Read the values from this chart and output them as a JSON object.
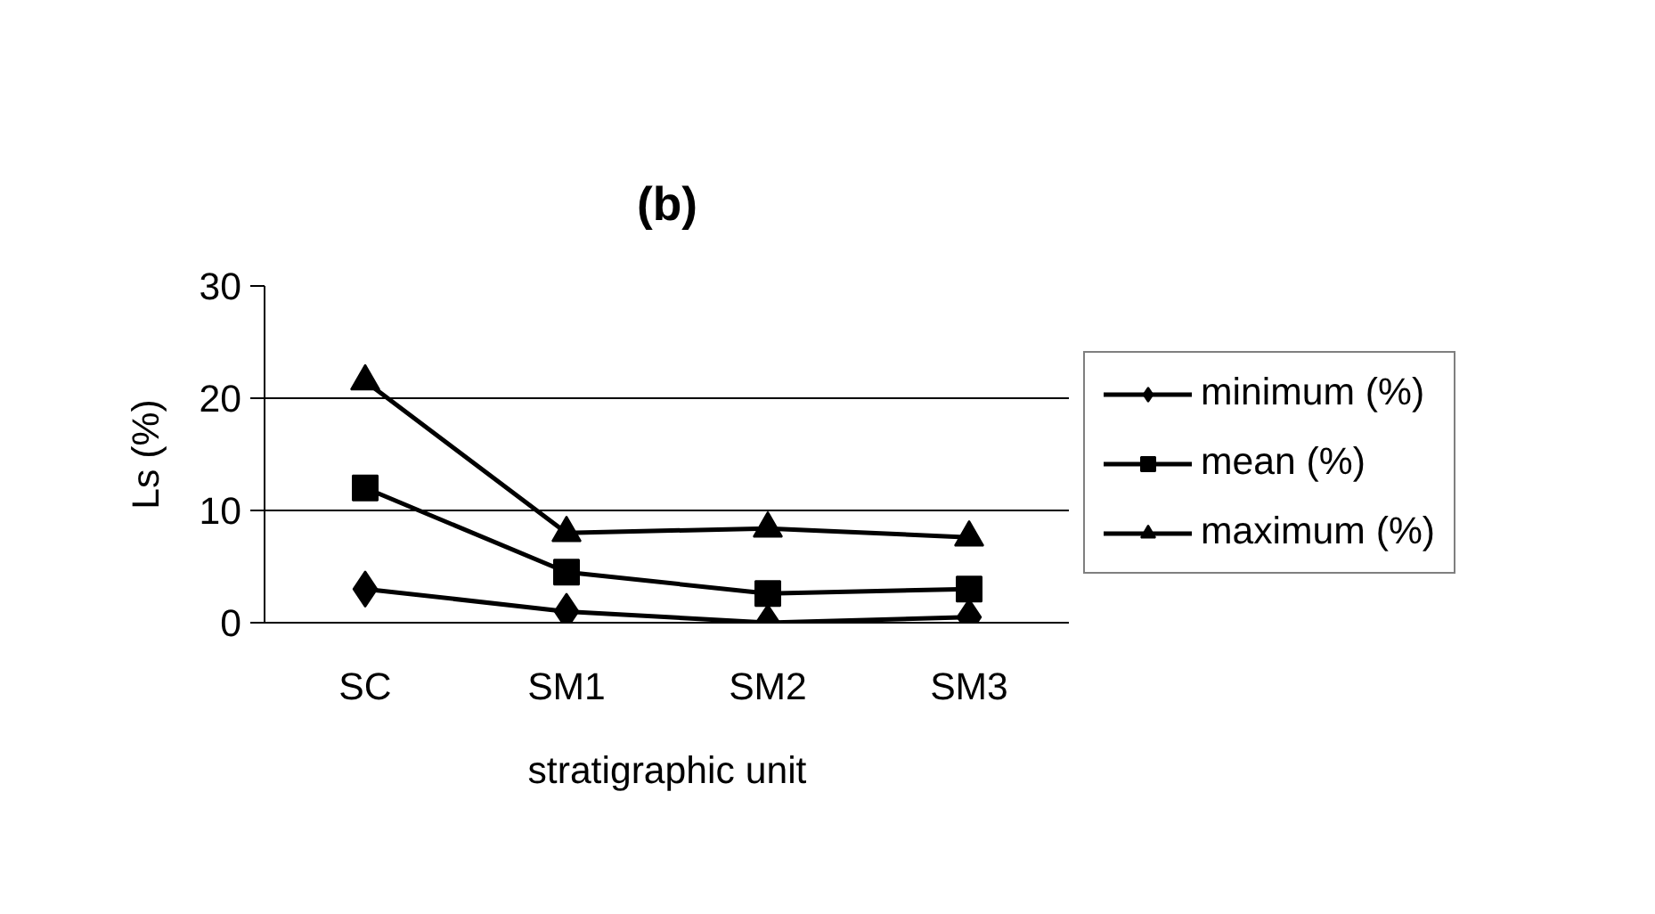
{
  "chart_data": {
    "type": "line",
    "title": "(b)",
    "xlabel": "stratigraphic unit",
    "ylabel": "Ls (%)",
    "categories": [
      "SC",
      "SM1",
      "SM2",
      "SM3"
    ],
    "series": [
      {
        "name": "minimum (%)",
        "color": "#000000",
        "marker": "diamond",
        "values": [
          3,
          1,
          0,
          0.5
        ]
      },
      {
        "name": "mean (%)",
        "color": "#000000",
        "marker": "square",
        "values": [
          12,
          4.5,
          2.6,
          3
        ]
      },
      {
        "name": "maximum (%)",
        "color": "#000000",
        "marker": "triangle",
        "values": [
          21.5,
          8,
          8.4,
          7.6
        ]
      }
    ],
    "ylim": [
      0,
      30
    ],
    "yticks": [
      0,
      10,
      20,
      30
    ],
    "grid": "y",
    "legend": "right",
    "line_style": "solid"
  }
}
